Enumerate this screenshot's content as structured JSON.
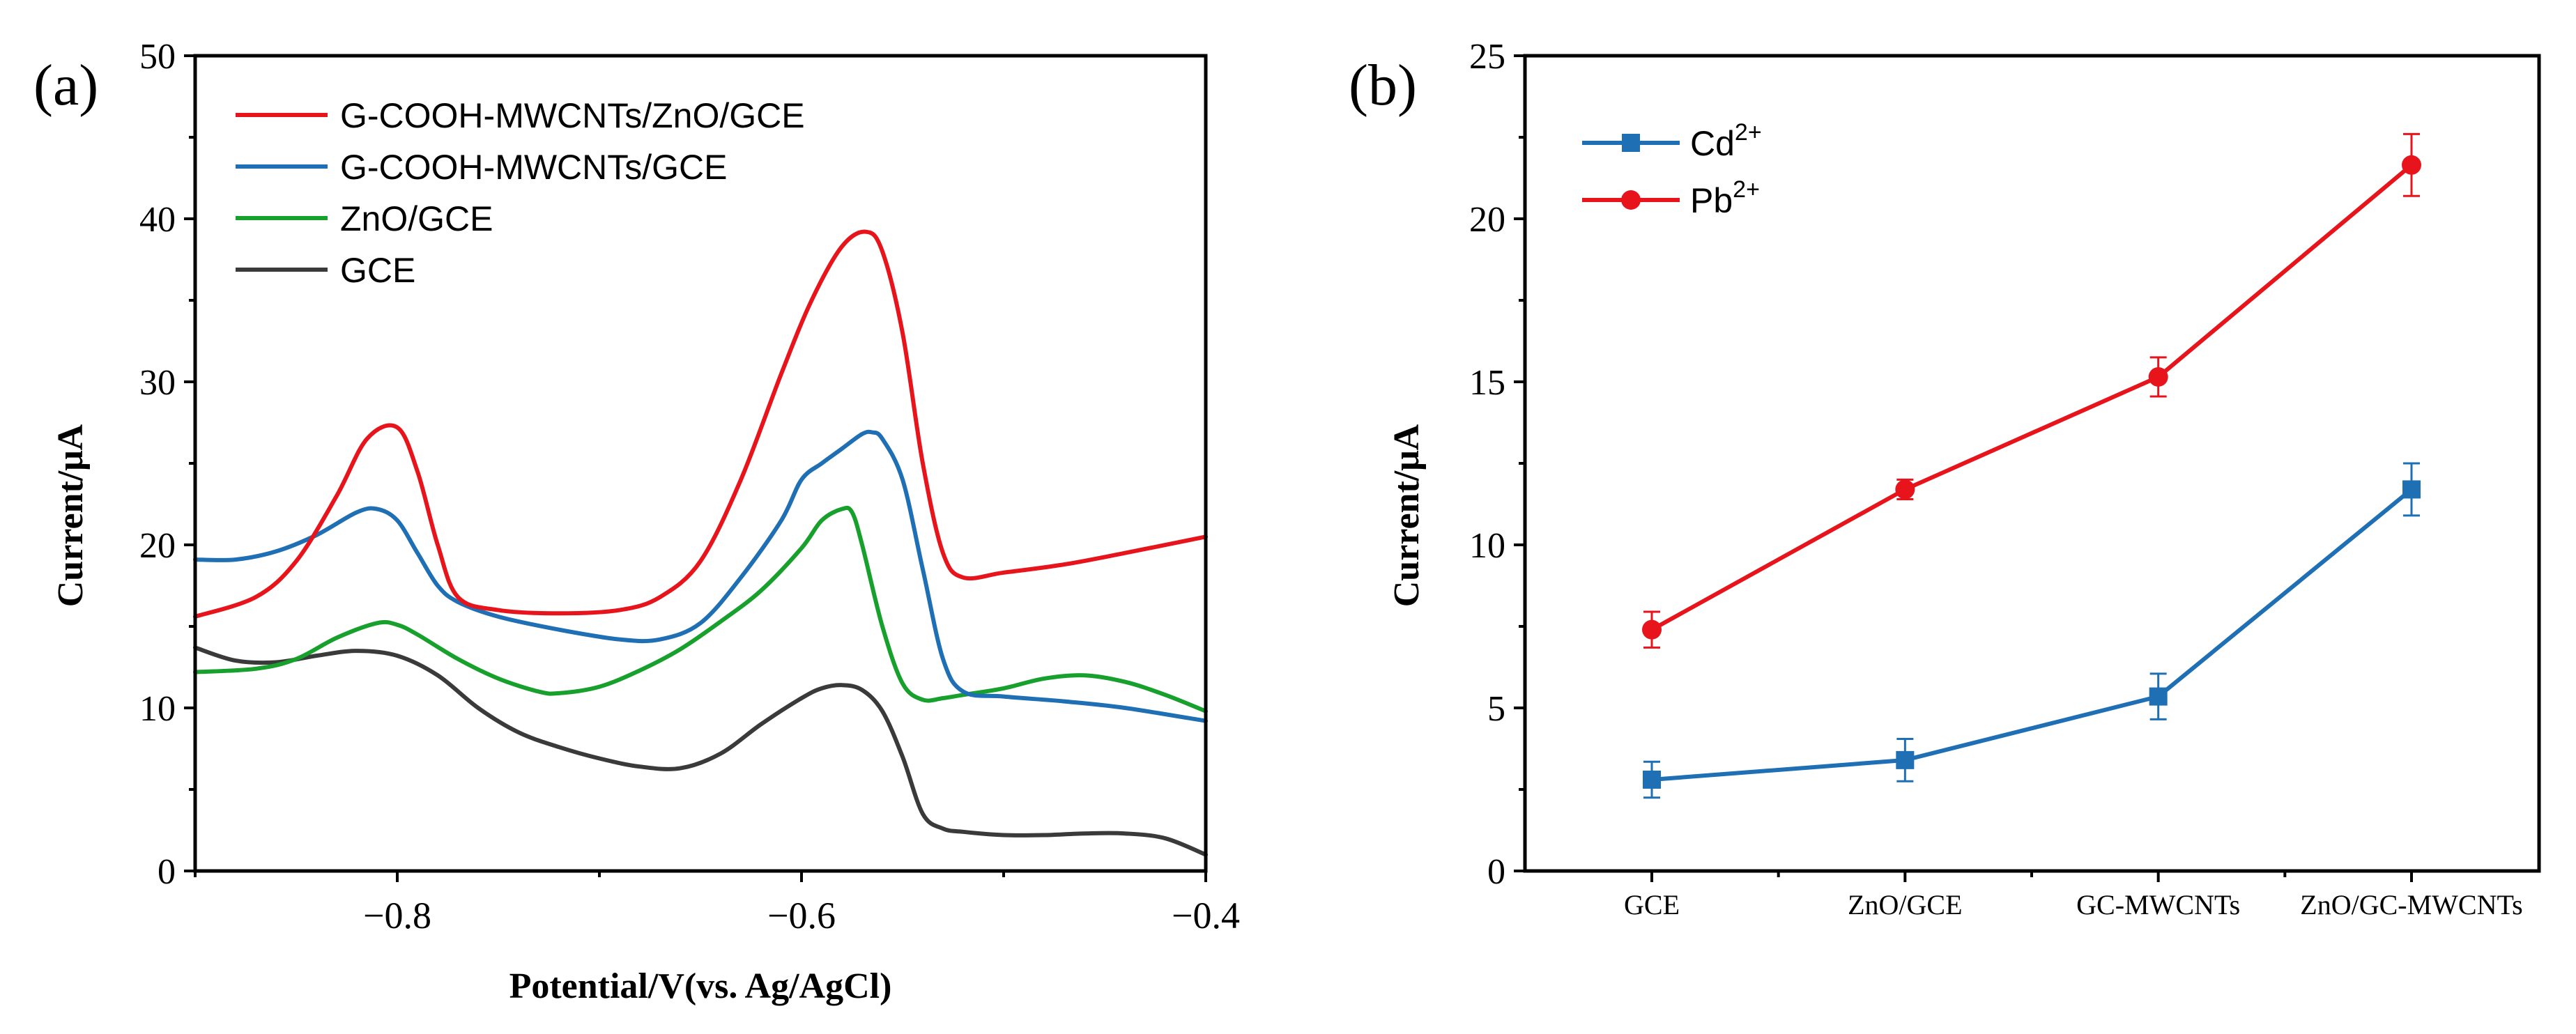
{
  "chart_data": [
    {
      "panel_label": "(a)",
      "type": "line",
      "xlabel": "Potential/V(vs. Ag/AgCl)",
      "ylabel": "Current/μA",
      "xlim": [
        -0.9,
        -0.4
      ],
      "ylim": [
        0,
        50
      ],
      "xticks": [
        -0.8,
        -0.6,
        -0.4
      ],
      "xtick_labels": [
        "−0.8",
        "−0.6",
        "−0.4"
      ],
      "yticks": [
        0,
        10,
        20,
        30,
        40,
        50
      ],
      "ytick_labels": [
        "0",
        "10",
        "20",
        "30",
        "40",
        "50"
      ],
      "legend_position": "top-left",
      "series": [
        {
          "name": "G-COOH-MWCNTs/ZnO/GCE",
          "color": "#e8141c",
          "x": [
            -0.9,
            -0.87,
            -0.85,
            -0.83,
            -0.815,
            -0.8,
            -0.79,
            -0.78,
            -0.77,
            -0.75,
            -0.72,
            -0.69,
            -0.67,
            -0.65,
            -0.63,
            -0.61,
            -0.595,
            -0.58,
            -0.568,
            -0.56,
            -0.55,
            -0.54,
            -0.53,
            -0.52,
            -0.5,
            -0.47,
            -0.44,
            -0.4
          ],
          "y": [
            15.6,
            16.8,
            19.0,
            23.0,
            26.5,
            27.2,
            24.5,
            20.0,
            16.8,
            16.0,
            15.8,
            16.0,
            16.8,
            19.0,
            24.0,
            30.5,
            35.0,
            38.3,
            39.2,
            38.0,
            33.0,
            25.0,
            19.5,
            18.0,
            18.3,
            18.8,
            19.5,
            20.5
          ]
        },
        {
          "name": "G-COOH-MWCNTs/GCE",
          "color": "#1f6fb5",
          "x": [
            -0.9,
            -0.88,
            -0.86,
            -0.84,
            -0.82,
            -0.81,
            -0.8,
            -0.79,
            -0.78,
            -0.77,
            -0.75,
            -0.72,
            -0.69,
            -0.67,
            -0.65,
            -0.63,
            -0.61,
            -0.6,
            -0.59,
            -0.58,
            -0.57,
            -0.565,
            -0.56,
            -0.55,
            -0.54,
            -0.53,
            -0.52,
            -0.5,
            -0.47,
            -0.44,
            -0.4
          ],
          "y": [
            19.1,
            19.1,
            19.6,
            20.6,
            22.0,
            22.2,
            21.5,
            19.5,
            17.5,
            16.5,
            15.6,
            14.8,
            14.2,
            14.2,
            15.2,
            18.0,
            21.5,
            24.0,
            25.0,
            25.9,
            26.8,
            26.9,
            26.5,
            24.0,
            18.5,
            13.0,
            11.0,
            10.7,
            10.4,
            10.0,
            9.2
          ]
        },
        {
          "name": "ZnO/GCE",
          "color": "#17a02c",
          "x": [
            -0.9,
            -0.87,
            -0.85,
            -0.83,
            -0.81,
            -0.8,
            -0.79,
            -0.77,
            -0.75,
            -0.73,
            -0.72,
            -0.7,
            -0.68,
            -0.66,
            -0.64,
            -0.62,
            -0.6,
            -0.59,
            -0.58,
            -0.575,
            -0.57,
            -0.56,
            -0.55,
            -0.54,
            -0.53,
            -0.52,
            -0.5,
            -0.48,
            -0.46,
            -0.44,
            -0.42,
            -0.4
          ],
          "y": [
            12.2,
            12.4,
            13.0,
            14.3,
            15.2,
            15.1,
            14.5,
            13.0,
            11.8,
            11.0,
            10.9,
            11.3,
            12.3,
            13.6,
            15.3,
            17.2,
            19.8,
            21.5,
            22.2,
            22.0,
            20.0,
            15.0,
            11.5,
            10.5,
            10.6,
            10.8,
            11.2,
            11.8,
            12.0,
            11.6,
            10.8,
            9.8
          ]
        },
        {
          "name": "GCE",
          "color": "#3a3a3a",
          "x": [
            -0.9,
            -0.88,
            -0.86,
            -0.84,
            -0.82,
            -0.8,
            -0.78,
            -0.76,
            -0.74,
            -0.72,
            -0.7,
            -0.68,
            -0.66,
            -0.64,
            -0.62,
            -0.6,
            -0.59,
            -0.58,
            -0.57,
            -0.56,
            -0.55,
            -0.54,
            -0.53,
            -0.52,
            -0.5,
            -0.48,
            -0.46,
            -0.44,
            -0.42,
            -0.4
          ],
          "y": [
            13.7,
            12.9,
            12.8,
            13.2,
            13.5,
            13.2,
            12.0,
            10.0,
            8.5,
            7.6,
            6.9,
            6.4,
            6.3,
            7.2,
            9.0,
            10.6,
            11.2,
            11.4,
            11.1,
            9.8,
            7.0,
            3.5,
            2.6,
            2.4,
            2.2,
            2.2,
            2.3,
            2.3,
            2.0,
            1.0
          ]
        }
      ]
    },
    {
      "panel_label": "(b)",
      "type": "line",
      "xlabel": "",
      "ylabel": "Current/μA",
      "categories": [
        "GCE",
        "ZnO/GCE",
        "GC-MWCNTs",
        "ZnO/GC-MWCNTs"
      ],
      "ylim": [
        0,
        25
      ],
      "yticks": [
        0,
        5,
        10,
        15,
        20,
        25
      ],
      "ytick_labels": [
        "0",
        "5",
        "10",
        "15",
        "20",
        "25"
      ],
      "legend_position": "top-left",
      "series": [
        {
          "name": "Cd",
          "superscript": "2+",
          "color": "#1f6fb5",
          "marker": "square",
          "values": [
            2.8,
            3.4,
            5.35,
            11.7
          ],
          "errors": [
            0.55,
            0.65,
            0.7,
            0.8
          ]
        },
        {
          "name": "Pb",
          "superscript": "2+",
          "color": "#e8141c",
          "marker": "circle",
          "values": [
            7.4,
            11.7,
            15.15,
            21.65
          ],
          "errors": [
            0.55,
            0.3,
            0.6,
            0.95
          ]
        }
      ]
    }
  ]
}
